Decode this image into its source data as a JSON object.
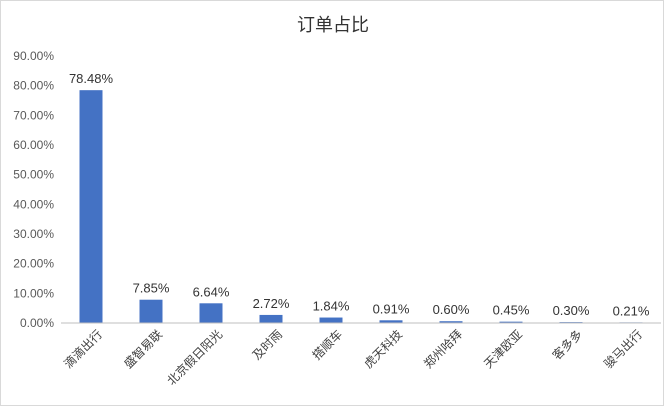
{
  "chart_data": {
    "type": "bar",
    "title": "订单占比",
    "categories": [
      "滴滴出行",
      "盛智易联",
      "北京假日阳光",
      "及时雨",
      "搭顺车",
      "虎天科技",
      "郑州哈拜",
      "天津欧亚",
      "客多多",
      "骏马出行"
    ],
    "values": [
      78.48,
      7.85,
      6.64,
      2.72,
      1.84,
      0.91,
      0.6,
      0.45,
      0.3,
      0.21
    ],
    "data_labels": [
      "78.48%",
      "7.85%",
      "6.64%",
      "2.72%",
      "1.84%",
      "0.91%",
      "0.60%",
      "0.45%",
      "0.30%",
      "0.21%"
    ],
    "y_ticks": [
      0,
      10,
      20,
      30,
      40,
      50,
      60,
      70,
      80,
      90
    ],
    "y_tick_labels": [
      "0.00%",
      "10.00%",
      "20.00%",
      "30.00%",
      "40.00%",
      "50.00%",
      "60.00%",
      "70.00%",
      "80.00%",
      "90.00%"
    ],
    "ylim": [
      0,
      90
    ],
    "xlabel": "",
    "ylabel": "",
    "grid": false,
    "legend": "none",
    "bar_color": "#4472c4",
    "axis_color": "#bfbfbf"
  }
}
